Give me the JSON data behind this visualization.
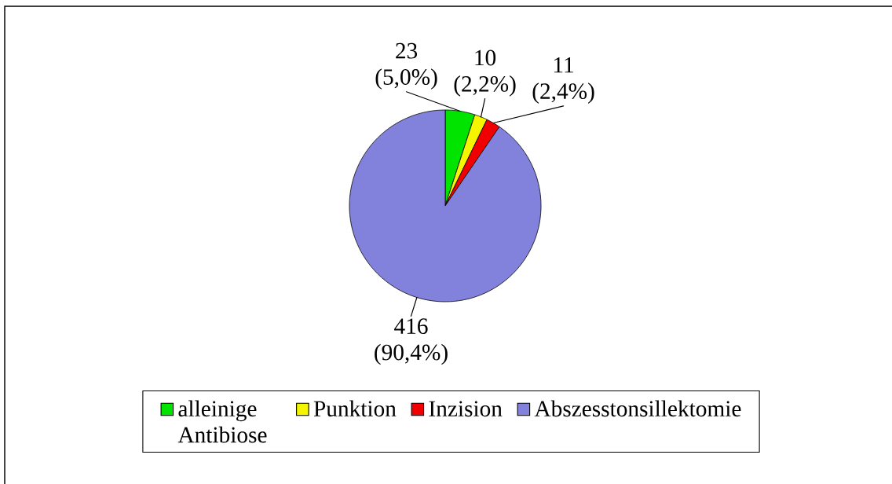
{
  "chart_data": {
    "type": "pie",
    "categories": [
      "alleinige Antibiose",
      "Punktion",
      "Inzision",
      "Abszesstonsillektomie"
    ],
    "values": [
      23,
      10,
      11,
      416
    ],
    "colors": [
      "#00e400",
      "#f5f500",
      "#f00000",
      "#8282dc"
    ],
    "value_labels": [
      "23 (5,0%)",
      "10 (2,2%)",
      "11 (2,4%)",
      "416 (90,4%)"
    ],
    "legend": "bottom"
  }
}
